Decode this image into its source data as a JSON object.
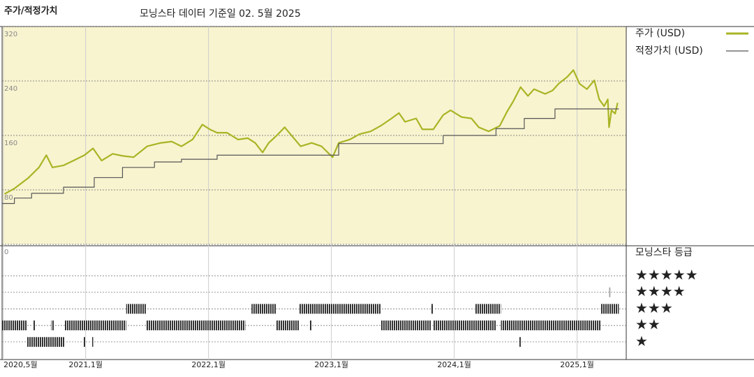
{
  "chart_data": {
    "type": "line",
    "title": "주가/적정가치",
    "subtitle": "모닝스타 데이터 기준일 02. 5월 2025",
    "xlim": [
      2020.32,
      2025.4
    ],
    "xticks": [
      {
        "value": 2020.33,
        "label": "2020,5월"
      },
      {
        "value": 2021,
        "label": "2021,1월"
      },
      {
        "value": 2022,
        "label": "2022,1월"
      },
      {
        "value": 2023,
        "label": "2023,1월"
      },
      {
        "value": 2024,
        "label": "2024,1월"
      },
      {
        "value": 2025,
        "label": "2025,1월"
      }
    ],
    "ylim": [
      0,
      320
    ],
    "yticks": [
      0,
      80,
      160,
      240,
      320
    ],
    "grid": true,
    "series": [
      {
        "name": "주가 (USD)",
        "color": "#a9b424",
        "x": [
          2020.34,
          2020.42,
          2020.53,
          2020.62,
          2020.68,
          2020.73,
          2020.82,
          2020.9,
          2020.99,
          2021.06,
          2021.13,
          2021.22,
          2021.3,
          2021.39,
          2021.5,
          2021.61,
          2021.7,
          2021.78,
          2021.87,
          2021.95,
          2022.01,
          2022.07,
          2022.15,
          2022.24,
          2022.32,
          2022.38,
          2022.44,
          2022.49,
          2022.55,
          2022.62,
          2022.68,
          2022.75,
          2022.84,
          2022.92,
          2023.01,
          2023.06,
          2023.15,
          2023.23,
          2023.32,
          2023.4,
          2023.49,
          2023.55,
          2023.6,
          2023.69,
          2023.74,
          2023.83,
          2023.91,
          2023.97,
          2024.06,
          2024.14,
          2024.2,
          2024.28,
          2024.37,
          2024.43,
          2024.48,
          2024.54,
          2024.6,
          2024.65,
          2024.74,
          2024.8,
          2024.85,
          2024.92,
          2024.97,
          2025.02,
          2025.08,
          2025.14,
          2025.18,
          2025.22,
          2025.25,
          2025.26,
          2025.28,
          2025.31,
          2025.33
        ],
        "values": [
          74,
          82,
          97,
          113,
          131,
          113,
          116,
          123,
          131,
          141,
          123,
          133,
          130,
          128,
          144,
          149,
          151,
          144,
          154,
          176,
          169,
          164,
          164,
          154,
          156,
          149,
          135,
          149,
          159,
          172,
          159,
          144,
          149,
          144,
          128,
          149,
          154,
          162,
          166,
          174,
          185,
          193,
          180,
          185,
          169,
          169,
          190,
          197,
          187,
          185,
          172,
          166,
          174,
          195,
          210,
          231,
          218,
          228,
          221,
          226,
          236,
          246,
          256,
          236,
          228,
          241,
          213,
          203,
          213,
          172,
          197,
          192,
          208
        ]
      },
      {
        "name": "적정가치 (USD)",
        "color": "#555555",
        "step": true,
        "x": [
          2020.32,
          2020.42,
          2020.56,
          2020.82,
          2021.07,
          2021.3,
          2021.56,
          2021.78,
          2022.07,
          2023.06,
          2023.91,
          2024.34,
          2024.57,
          2024.82,
          2025.34
        ],
        "values": [
          60,
          68,
          75,
          84,
          98,
          113,
          121,
          125,
          131,
          148,
          160,
          170,
          185,
          199,
          199
        ]
      }
    ],
    "rating": {
      "title": "모닝스타 등급",
      "labels": [
        "★★★★★",
        "★★★★",
        "★★★",
        "★★",
        "★"
      ],
      "segments": [
        {
          "stars": 2,
          "from": 2020.32,
          "to": 2020.52
        },
        {
          "stars": 1,
          "from": 2020.52,
          "to": 2020.83
        },
        {
          "stars": 2,
          "from": 2020.57,
          "to": 2020.59
        },
        {
          "stars": 2,
          "from": 2020.72,
          "to": 2020.74
        },
        {
          "stars": 2,
          "from": 2020.83,
          "to": 2021.33
        },
        {
          "stars": 1,
          "from": 2020.98,
          "to": 2021.0
        },
        {
          "stars": 1,
          "from": 2021.05,
          "to": 2021.06
        },
        {
          "stars": 3,
          "from": 2021.33,
          "to": 2021.49
        },
        {
          "stars": 2,
          "from": 2021.49,
          "to": 2022.3
        },
        {
          "stars": 3,
          "from": 2022.35,
          "to": 2022.55
        },
        {
          "stars": 2,
          "from": 2022.55,
          "to": 2022.74
        },
        {
          "stars": 3,
          "from": 2022.74,
          "to": 2023.4
        },
        {
          "stars": 2,
          "from": 2022.82,
          "to": 2022.84
        },
        {
          "stars": 2,
          "from": 2023.4,
          "to": 2023.81
        },
        {
          "stars": 3,
          "from": 2023.81,
          "to": 2023.83
        },
        {
          "stars": 2,
          "from": 2023.83,
          "to": 2024.34
        },
        {
          "stars": 3,
          "from": 2024.17,
          "to": 2024.38
        },
        {
          "stars": 2,
          "from": 2024.38,
          "to": 2025.19
        },
        {
          "stars": 1,
          "from": 2024.53,
          "to": 2024.54
        },
        {
          "stars": 3,
          "from": 2025.19,
          "to": 2025.34
        },
        {
          "stars": 4,
          "from": 2025.26,
          "to": 2025.27
        }
      ]
    }
  }
}
